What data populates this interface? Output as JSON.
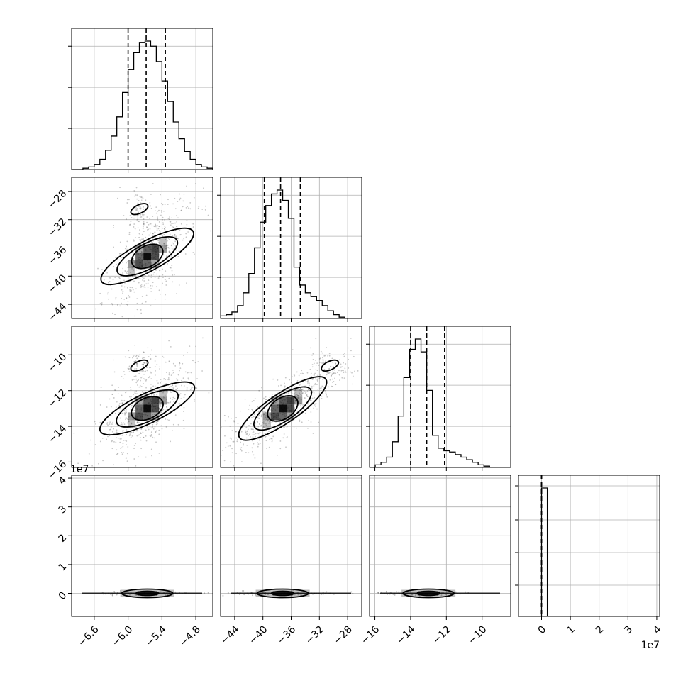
{
  "chart_data": {
    "type": "corner",
    "grid": true,
    "parameters": [
      {
        "range": [
          -7.0,
          -4.5
        ],
        "ticks": [
          -6.6,
          -6.0,
          -5.4,
          -4.8
        ],
        "tick_labels": [
          "−6.6",
          "−6.0",
          "−5.4",
          "−4.8"
        ],
        "quantiles": [
          -6.0,
          -5.68,
          -5.34
        ],
        "mean": -5.66,
        "sd": 0.3
      },
      {
        "range": [
          -46.0,
          -26.0
        ],
        "ticks": [
          -44,
          -40,
          -36,
          -32,
          -28
        ],
        "tick_labels": [
          "−44",
          "−40",
          "−36",
          "−32",
          "−28"
        ],
        "quantiles": [
          -39.8,
          -37.5,
          -34.7
        ],
        "mean": -37.2,
        "sd": 3.0
      },
      {
        "range": [
          -16.3,
          -8.4
        ],
        "ticks": [
          -16,
          -14,
          -12,
          -10
        ],
        "tick_labels": [
          "−16",
          "−14",
          "−12",
          "−10"
        ],
        "quantiles": [
          -14.0,
          -13.1,
          -12.1
        ],
        "mean": -13.0,
        "sd": 1.0
      },
      {
        "range": [
          -0.8,
          4.1
        ],
        "ticks": [
          0,
          1,
          2,
          3,
          4
        ],
        "tick_labels": [
          "0",
          "1",
          "2",
          "3",
          "4"
        ],
        "quantiles": [
          0.0,
          0.0,
          0.0
        ],
        "offset_label": "1e7"
      }
    ],
    "histograms": {
      "p0": {
        "bins_from": -7.0,
        "bin_width": 0.1,
        "counts": [
          0,
          0,
          1,
          2,
          4,
          8,
          15,
          26,
          41,
          60,
          78,
          91,
          99,
          100,
          96,
          84,
          69,
          53,
          37,
          24,
          14,
          8,
          4,
          2,
          1
        ]
      },
      "p1": {
        "bins_from": -46.0,
        "bin_width": 0.8,
        "counts": [
          2,
          3,
          5,
          10,
          20,
          35,
          55,
          75,
          88,
          97,
          100,
          92,
          78,
          40,
          26,
          20,
          17,
          14,
          10,
          6,
          3,
          1,
          0,
          0,
          0
        ]
      },
      "p2": {
        "bins_from": -16.3,
        "bin_width": 0.32,
        "counts": [
          0,
          2,
          4,
          8,
          20,
          40,
          70,
          92,
          100,
          90,
          60,
          25,
          15,
          13,
          12,
          10,
          8,
          6,
          4,
          2,
          1,
          0,
          0,
          0,
          0
        ]
      },
      "p3": {
        "bins_from": 0.0,
        "bin_width": 0.2,
        "counts": [
          100
        ]
      }
    },
    "secondary_mode": {
      "p0": -5.8,
      "p1": -30.5,
      "p2": -10.6
    }
  }
}
